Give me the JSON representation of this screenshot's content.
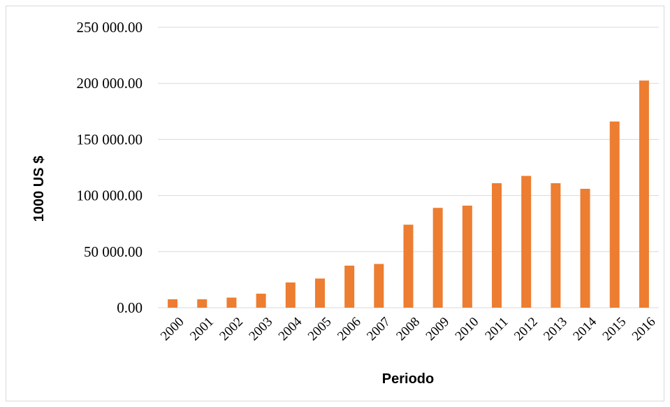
{
  "chart_data": {
    "type": "bar",
    "title": "",
    "xlabel": "Periodo",
    "ylabel": "1000 US $",
    "categories": [
      "2000",
      "2001",
      "2002",
      "2003",
      "2004",
      "2005",
      "2006",
      "2007",
      "2008",
      "2009",
      "2010",
      "2011",
      "2012",
      "2013",
      "2014",
      "2015",
      "2016"
    ],
    "values": [
      7500,
      7500,
      9000,
      12500,
      22500,
      26000,
      37500,
      39000,
      74000,
      89000,
      91000,
      111000,
      117500,
      111000,
      106000,
      166000,
      202500
    ],
    "ylim": [
      0,
      250000
    ],
    "yticks": [
      0,
      50000,
      100000,
      150000,
      200000,
      250000
    ],
    "ytick_labels": [
      "0.00",
      "50 000.00",
      "100 000.00",
      "150 000.00",
      "200 000.00",
      "250 000.00"
    ],
    "grid": true,
    "legend": "none",
    "bar_color": "#ED7D31",
    "grid_color": "#D9D9D9"
  }
}
